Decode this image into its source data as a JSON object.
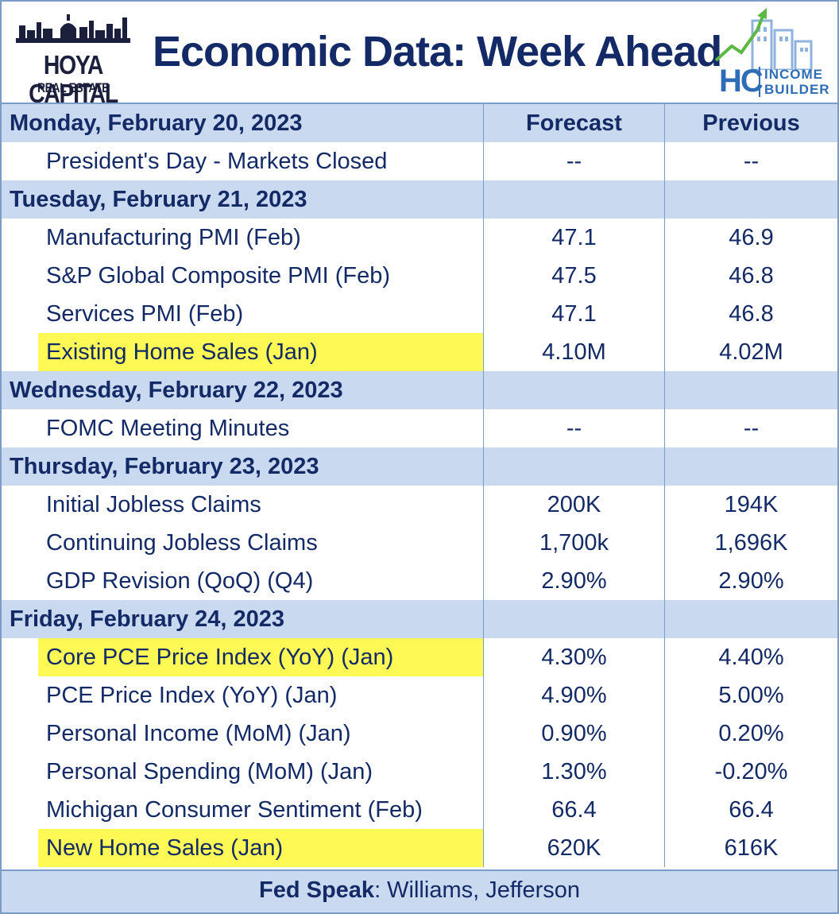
{
  "brand": {
    "name": "HOYA CAPITAL",
    "sub": "REAL ESTATE"
  },
  "title": "Economic Data: Week Ahead",
  "logo": {
    "hc": "HC",
    "line1": "INCOME",
    "line2": "BUILDER"
  },
  "columns": {
    "forecast": "Forecast",
    "previous": "Previous"
  },
  "days": [
    {
      "label": "Monday, February 20, 2023",
      "show_headers": true,
      "items": [
        {
          "name": "President's Day - Markets Closed",
          "forecast": "--",
          "previous": "--",
          "highlight": false
        }
      ]
    },
    {
      "label": "Tuesday, February 21, 2023",
      "show_headers": false,
      "items": [
        {
          "name": "Manufacturing PMI (Feb)",
          "forecast": "47.1",
          "previous": "46.9",
          "highlight": false
        },
        {
          "name": "S&P Global Composite PMI (Feb)",
          "forecast": "47.5",
          "previous": "46.8",
          "highlight": false
        },
        {
          "name": "Services PMI (Feb)",
          "forecast": "47.1",
          "previous": "46.8",
          "highlight": false
        },
        {
          "name": "Existing Home Sales (Jan)",
          "forecast": "4.10M",
          "previous": "4.02M",
          "highlight": true
        }
      ]
    },
    {
      "label": "Wednesday, February 22, 2023",
      "show_headers": false,
      "items": [
        {
          "name": "FOMC Meeting Minutes",
          "forecast": "--",
          "previous": "--",
          "highlight": false
        }
      ]
    },
    {
      "label": "Thursday, February 23, 2023",
      "show_headers": false,
      "items": [
        {
          "name": "Initial Jobless Claims",
          "forecast": "200K",
          "previous": "194K",
          "highlight": false
        },
        {
          "name": "Continuing Jobless Claims",
          "forecast": "1,700k",
          "previous": "1,696K",
          "highlight": false
        },
        {
          "name": "GDP Revision (QoQ) (Q4)",
          "forecast": "2.90%",
          "previous": "2.90%",
          "highlight": false
        }
      ]
    },
    {
      "label": "Friday, February 24, 2023",
      "show_headers": false,
      "items": [
        {
          "name": "Core PCE Price Index (YoY) (Jan)",
          "forecast": "4.30%",
          "previous": "4.40%",
          "highlight": true
        },
        {
          "name": "PCE Price Index (YoY) (Jan)",
          "forecast": "4.90%",
          "previous": "5.00%",
          "highlight": false
        },
        {
          "name": "Personal Income (MoM) (Jan)",
          "forecast": "0.90%",
          "previous": "0.20%",
          "highlight": false
        },
        {
          "name": "Personal Spending (MoM) (Jan)",
          "forecast": "1.30%",
          "previous": "-0.20%",
          "highlight": false
        },
        {
          "name": "Michigan Consumer Sentiment (Feb)",
          "forecast": "66.4",
          "previous": "66.4",
          "highlight": false
        },
        {
          "name": "New Home Sales (Jan)",
          "forecast": "620K",
          "previous": "616K",
          "highlight": true
        }
      ]
    }
  ],
  "footer": {
    "label": "Fed Speak",
    "text": ": Williams, Jefferson"
  },
  "colors": {
    "navy": "#132a66",
    "band": "#c9d9ef",
    "highlight": "#fff955",
    "border": "#7a9cc6",
    "logo_blue": "#2e6db5",
    "logo_green": "#5bb844"
  }
}
